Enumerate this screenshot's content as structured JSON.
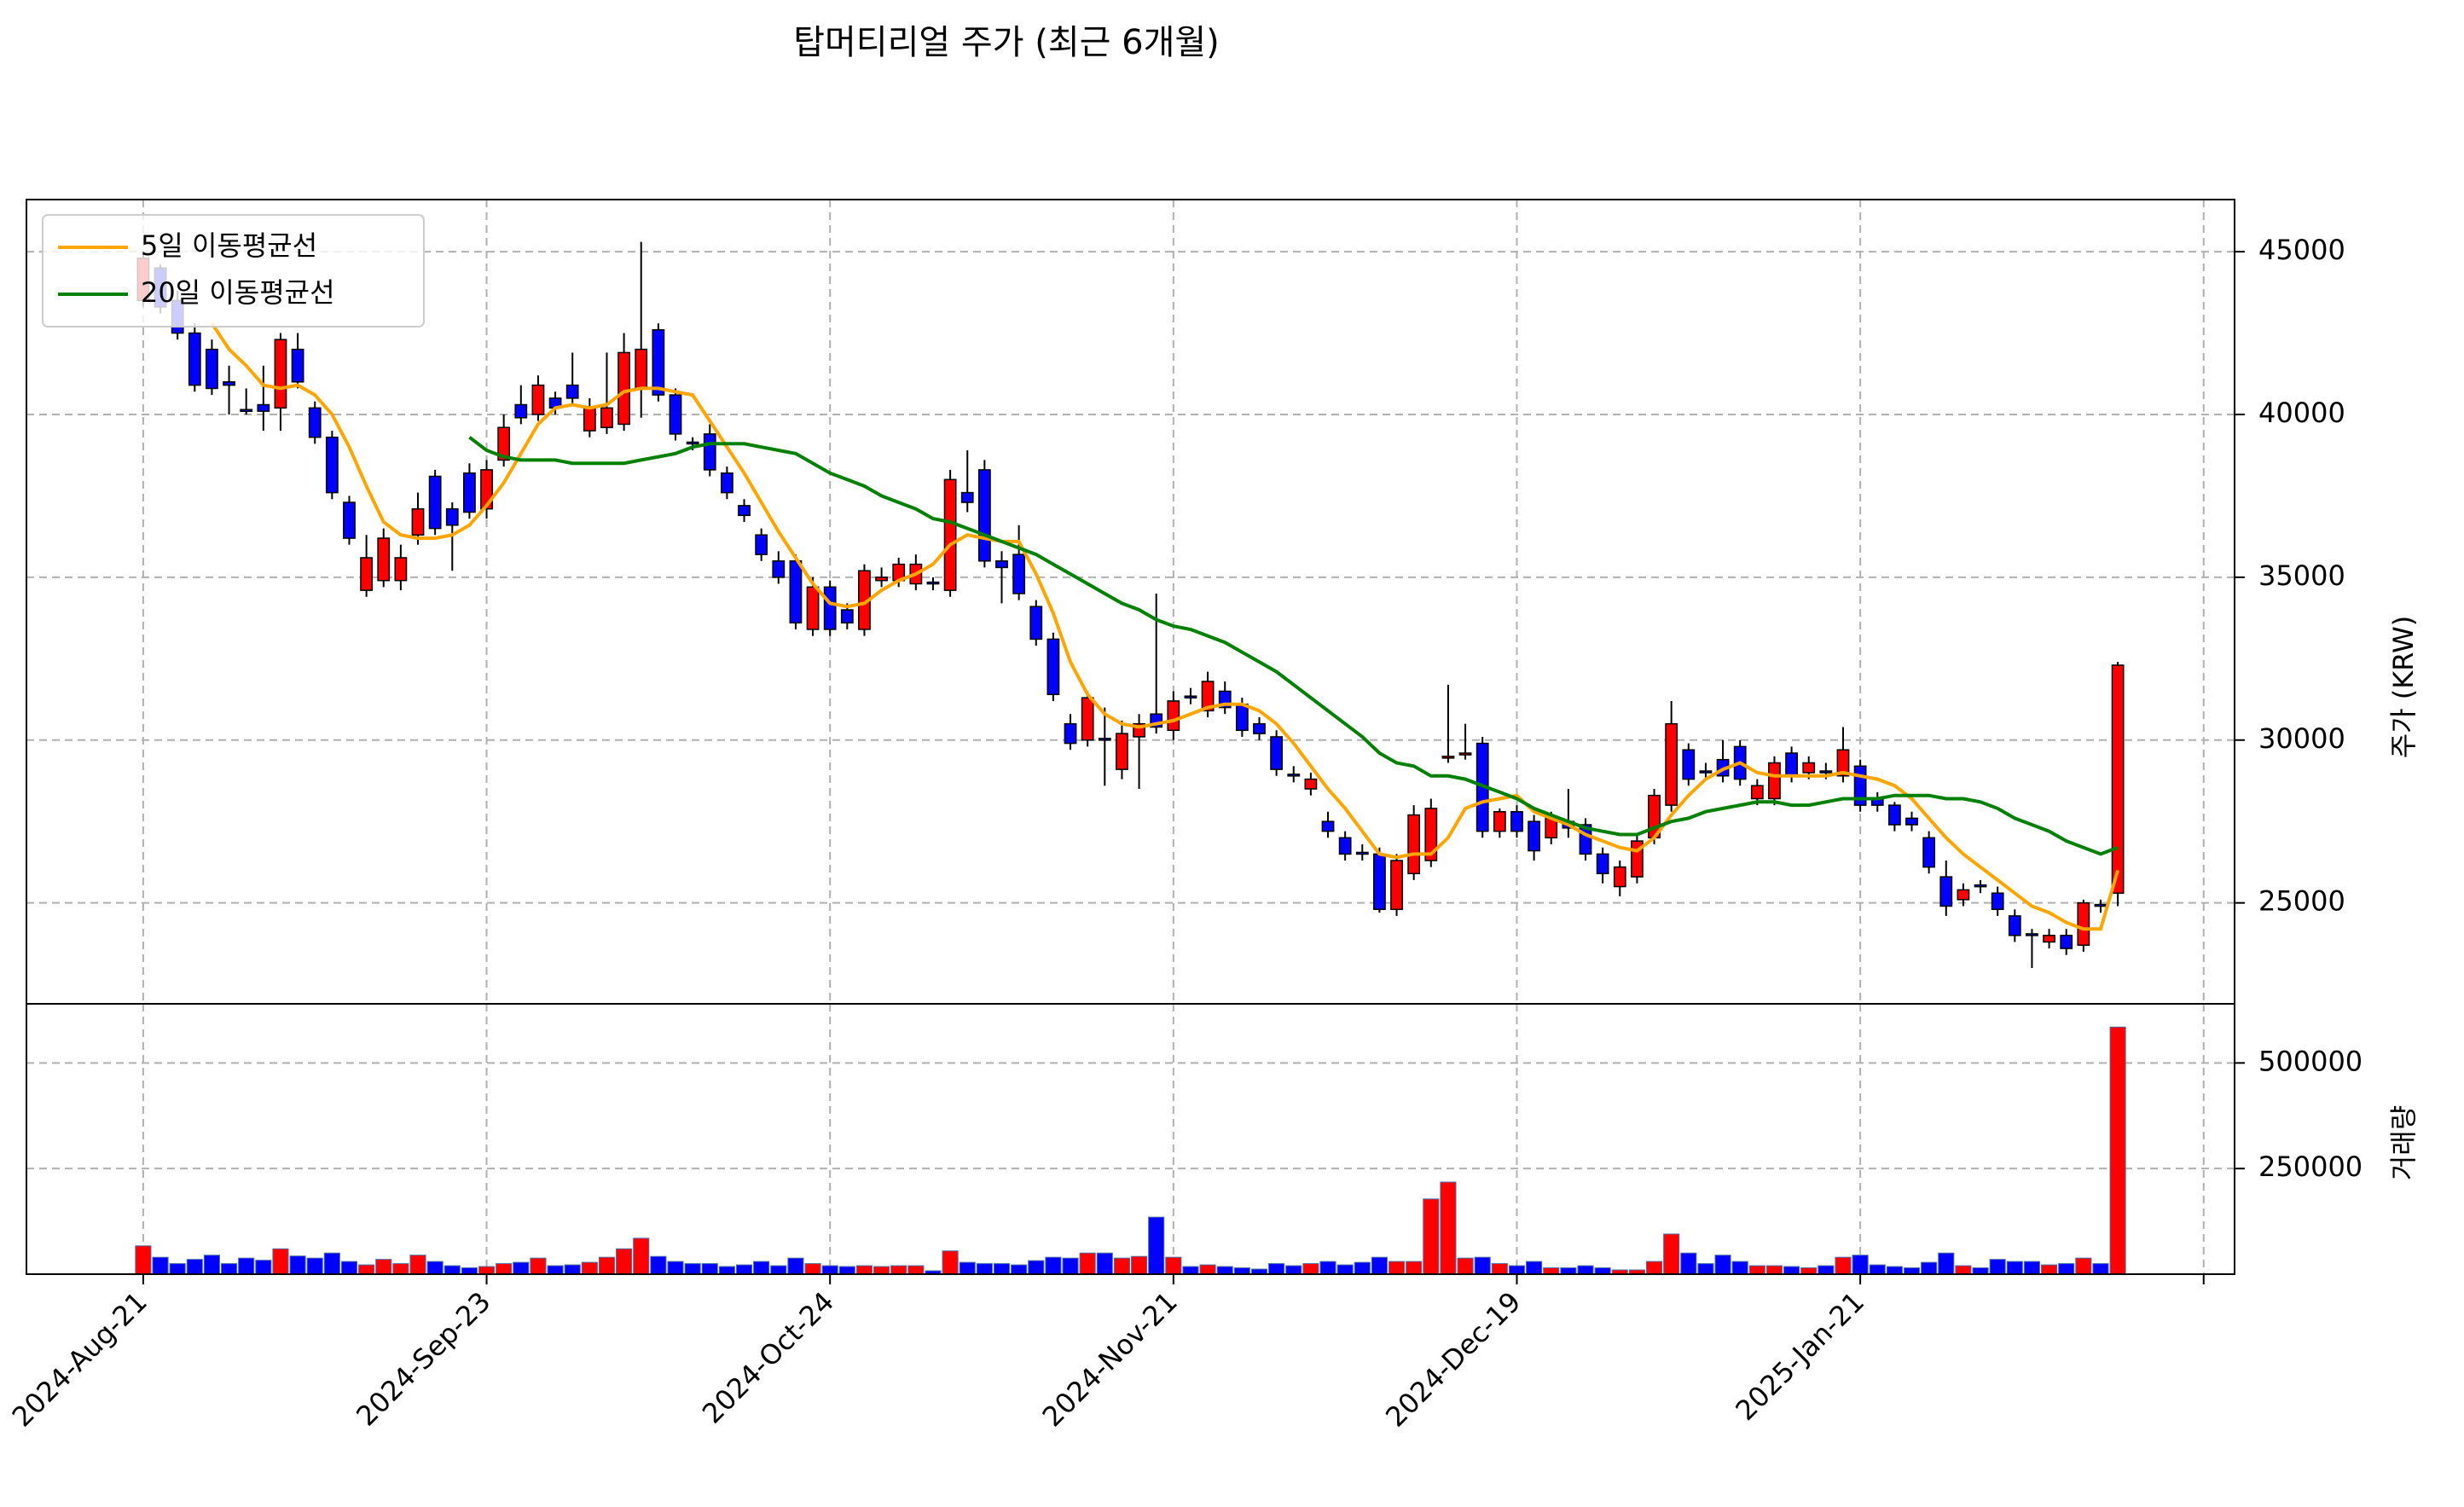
{
  "chart_data": [
    {
      "type": "candlestick",
      "title": "탑머티리얼 주가 (최근 6개월)",
      "ylabel": "주가 (KRW)",
      "xlim": [
        -6.8,
        121.8
      ],
      "ylim": [
        21900,
        46600
      ],
      "yticks": [
        25000,
        30000,
        35000,
        40000,
        45000
      ],
      "grid": true,
      "up_color": "#ff0000",
      "down_color": "#0000ff",
      "legend": "upper left",
      "open": [
        43500,
        44500,
        43500,
        42500,
        42000,
        41000,
        40150,
        40300,
        40200,
        42000,
        40200,
        39300,
        37300,
        34600,
        34900,
        34900,
        36300,
        38100,
        37100,
        38200,
        37100,
        38600,
        40300,
        40000,
        40500,
        40900,
        39500,
        39600,
        39700,
        40800,
        42600,
        40600,
        39150,
        39400,
        38200,
        37200,
        36300,
        35500,
        35500,
        33400,
        34700,
        34000,
        33400,
        34900,
        34900,
        34800,
        34850,
        34600,
        37600,
        38300,
        35500,
        35700,
        34100,
        33100,
        30500,
        30000,
        30050,
        29100,
        30100,
        30800,
        30300,
        31350,
        30900,
        31500,
        31100,
        30500,
        30100,
        28950,
        28500,
        27500,
        27000,
        26550,
        26500,
        24800,
        25900,
        26300,
        29450,
        29550,
        29900,
        27200,
        27800,
        27500,
        27000,
        27500,
        27400,
        26500,
        25500,
        25800,
        27000,
        28000,
        29700,
        29050,
        29400,
        29800,
        28200,
        28200,
        29600,
        29000,
        29050,
        28900,
        29200,
        28200,
        28000,
        27600,
        27000,
        25800,
        25100,
        25550,
        25300,
        24600,
        24050,
        23800,
        24000,
        23700,
        24950,
        25300
      ],
      "high": [
        45000,
        44600,
        43800,
        42800,
        42300,
        41500,
        40800,
        41500,
        42500,
        42500,
        40400,
        39500,
        37500,
        36300,
        36500,
        36000,
        37600,
        38300,
        37300,
        38500,
        38600,
        40000,
        40900,
        41200,
        40700,
        41900,
        40500,
        41900,
        42500,
        45300,
        42800,
        40800,
        39300,
        39700,
        38400,
        37400,
        36500,
        35800,
        35700,
        35000,
        34900,
        34200,
        35400,
        35300,
        35600,
        35700,
        35000,
        38300,
        38900,
        38600,
        35800,
        36600,
        34300,
        33300,
        30800,
        31500,
        31000,
        30600,
        30800,
        34500,
        31500,
        31600,
        32100,
        31800,
        31300,
        30700,
        30300,
        29200,
        29000,
        27800,
        27200,
        26800,
        26700,
        26500,
        28000,
        28200,
        31700,
        30500,
        30100,
        27900,
        28000,
        27700,
        27800,
        28500,
        27600,
        26700,
        26300,
        27100,
        28500,
        31200,
        29900,
        29300,
        30000,
        30000,
        28800,
        29500,
        29800,
        29500,
        29300,
        30400,
        29400,
        28400,
        28100,
        27800,
        27200,
        26300,
        25600,
        25700,
        25500,
        24800,
        24200,
        24200,
        24200,
        25100,
        25100,
        32400
      ],
      "low": [
        43300,
        43100,
        42300,
        40700,
        40600,
        40000,
        40000,
        39500,
        39500,
        40800,
        39100,
        37400,
        36000,
        34400,
        34700,
        34600,
        36000,
        36300,
        35200,
        36800,
        36800,
        38400,
        39700,
        39800,
        40000,
        40300,
        39300,
        39400,
        39500,
        39900,
        40400,
        39200,
        38900,
        38100,
        37400,
        36700,
        35500,
        34800,
        33400,
        33200,
        33200,
        33400,
        33200,
        34700,
        34700,
        34600,
        34600,
        34400,
        37000,
        35300,
        34200,
        34300,
        32900,
        31200,
        29700,
        29800,
        28600,
        28800,
        28500,
        30200,
        30000,
        31100,
        30700,
        30800,
        30100,
        30000,
        28900,
        28700,
        28300,
        27000,
        26300,
        26300,
        24700,
        24600,
        25700,
        26100,
        29300,
        29400,
        27000,
        27000,
        27000,
        26300,
        26800,
        27000,
        26300,
        25600,
        25200,
        25600,
        26800,
        27800,
        28600,
        28800,
        28700,
        28600,
        28000,
        28000,
        28700,
        28800,
        28800,
        28700,
        27800,
        27800,
        27200,
        27200,
        25900,
        24600,
        24900,
        25300,
        24600,
        23800,
        23000,
        23600,
        23400,
        23500,
        24700,
        24900
      ],
      "close": [
        44800,
        43300,
        42500,
        40900,
        40800,
        40900,
        40100,
        40100,
        42300,
        41000,
        39300,
        37600,
        36200,
        35600,
        36200,
        35600,
        37100,
        36500,
        36600,
        37000,
        38300,
        39600,
        39900,
        40900,
        40200,
        40500,
        40200,
        40200,
        41900,
        42000,
        40600,
        39400,
        39100,
        38300,
        37600,
        36900,
        35700,
        35000,
        33600,
        34700,
        33400,
        33600,
        35200,
        35000,
        35400,
        35400,
        34800,
        38000,
        37300,
        35500,
        35300,
        34500,
        33100,
        31400,
        29900,
        31300,
        30000,
        30200,
        30500,
        30400,
        31200,
        31300,
        31800,
        31000,
        30300,
        30200,
        29100,
        28900,
        28800,
        27200,
        26500,
        26500,
        24800,
        26300,
        27700,
        27900,
        29500,
        29600,
        27200,
        27800,
        27200,
        26600,
        27600,
        27300,
        26500,
        25900,
        26100,
        26900,
        28300,
        30500,
        28800,
        29000,
        28900,
        28800,
        28600,
        29300,
        28900,
        29300,
        29000,
        29700,
        28000,
        28000,
        27400,
        27400,
        26100,
        24900,
        25400,
        25500,
        24800,
        24000,
        24000,
        24000,
        23600,
        25000,
        24900,
        32300
      ],
      "series": [
        {
          "name": "5일 이동평균선",
          "color": "#ffa500",
          "values": [
            null,
            null,
            null,
            null,
            42800,
            42000,
            41500,
            40900,
            40800,
            40900,
            40600,
            40000,
            39000,
            37800,
            36700,
            36300,
            36200,
            36200,
            36300,
            36600,
            37200,
            37900,
            38800,
            39700,
            40200,
            40300,
            40200,
            40300,
            40700,
            40800,
            40800,
            40700,
            40600,
            39800,
            39000,
            38200,
            37300,
            36400,
            35600,
            34800,
            34200,
            34100,
            34200,
            34600,
            34900,
            35100,
            35400,
            36000,
            36300,
            36200,
            36100,
            36100,
            35100,
            33900,
            32400,
            31400,
            30800,
            30500,
            30400,
            30500,
            30600,
            30800,
            31000,
            31100,
            31100,
            30900,
            30500,
            29900,
            29200,
            28500,
            27900,
            27200,
            26500,
            26400,
            26500,
            26500,
            27000,
            27900,
            28100,
            28200,
            28300,
            27800,
            27600,
            27400,
            27100,
            26900,
            26700,
            26600,
            27000,
            27700,
            28300,
            28800,
            29100,
            29300,
            29000,
            28900,
            28900,
            28900,
            28900,
            29000,
            28900,
            28800,
            28600,
            28200,
            27600,
            27000,
            26500,
            26100,
            25700,
            25300,
            24900,
            24700,
            24400,
            24200,
            24200,
            26000
          ]
        },
        {
          "name": "20일 이동평균선",
          "color": "#008000",
          "values": [
            null,
            null,
            null,
            null,
            null,
            null,
            null,
            null,
            null,
            null,
            null,
            null,
            null,
            null,
            null,
            null,
            null,
            null,
            null,
            39300,
            38900,
            38700,
            38600,
            38600,
            38600,
            38500,
            38500,
            38500,
            38500,
            38600,
            38700,
            38800,
            39000,
            39100,
            39100,
            39100,
            39000,
            38900,
            38800,
            38500,
            38200,
            38000,
            37800,
            37500,
            37300,
            37100,
            36800,
            36700,
            36500,
            36300,
            36100,
            35900,
            35700,
            35400,
            35100,
            34800,
            34500,
            34200,
            34000,
            33700,
            33500,
            33400,
            33200,
            33000,
            32700,
            32400,
            32100,
            31700,
            31300,
            30900,
            30500,
            30100,
            29600,
            29300,
            29200,
            28900,
            28900,
            28800,
            28600,
            28400,
            28200,
            27900,
            27700,
            27500,
            27300,
            27200,
            27100,
            27100,
            27300,
            27500,
            27600,
            27800,
            27900,
            28000,
            28100,
            28100,
            28000,
            28000,
            28100,
            28200,
            28200,
            28200,
            28300,
            28300,
            28300,
            28200,
            28200,
            28100,
            27900,
            27600,
            27400,
            27200,
            26900,
            26700,
            26500,
            26700
          ]
        }
      ]
    },
    {
      "type": "bar",
      "ylabel": "거래량",
      "xlim": [
        -6.8,
        121.8
      ],
      "xticks": [
        {
          "value": 0,
          "label": "2024-Aug-21"
        },
        {
          "value": 20,
          "label": "2024-Sep-23"
        },
        {
          "value": 40,
          "label": "2024-Oct-24"
        },
        {
          "value": 60,
          "label": "2024-Nov-21"
        },
        {
          "value": 80,
          "label": "2024-Dec-19"
        },
        {
          "value": 100,
          "label": "2025-Jan-21"
        },
        {
          "value": 120,
          "label": null
        }
      ],
      "ylim": [
        0,
        640000
      ],
      "yticks": [
        250000,
        500000
      ],
      "grid": true,
      "values": [
        67000,
        40000,
        25000,
        35000,
        45000,
        25000,
        38000,
        33000,
        60000,
        43000,
        38000,
        50000,
        30000,
        22000,
        35000,
        25000,
        45000,
        30000,
        20000,
        15000,
        18000,
        25000,
        28000,
        38000,
        20000,
        22000,
        28000,
        40000,
        60000,
        85000,
        42000,
        30000,
        25000,
        25000,
        18000,
        22000,
        30000,
        20000,
        38000,
        25000,
        20000,
        18000,
        20000,
        18000,
        20000,
        20000,
        8000,
        55000,
        28000,
        25000,
        25000,
        22000,
        32000,
        40000,
        38000,
        50000,
        50000,
        38000,
        42000,
        135000,
        40000,
        18000,
        22000,
        18000,
        15000,
        12000,
        25000,
        20000,
        25000,
        30000,
        22000,
        28000,
        40000,
        30000,
        30000,
        178000,
        218000,
        38000,
        40000,
        25000,
        20000,
        30000,
        15000,
        15000,
        20000,
        15000,
        10000,
        10000,
        30000,
        95000,
        50000,
        25000,
        45000,
        30000,
        20000,
        20000,
        18000,
        15000,
        20000,
        40000,
        45000,
        22000,
        18000,
        15000,
        28000,
        50000,
        20000,
        15000,
        35000,
        30000,
        30000,
        22000,
        25000,
        38000,
        25000,
        585000
      ]
    }
  ]
}
